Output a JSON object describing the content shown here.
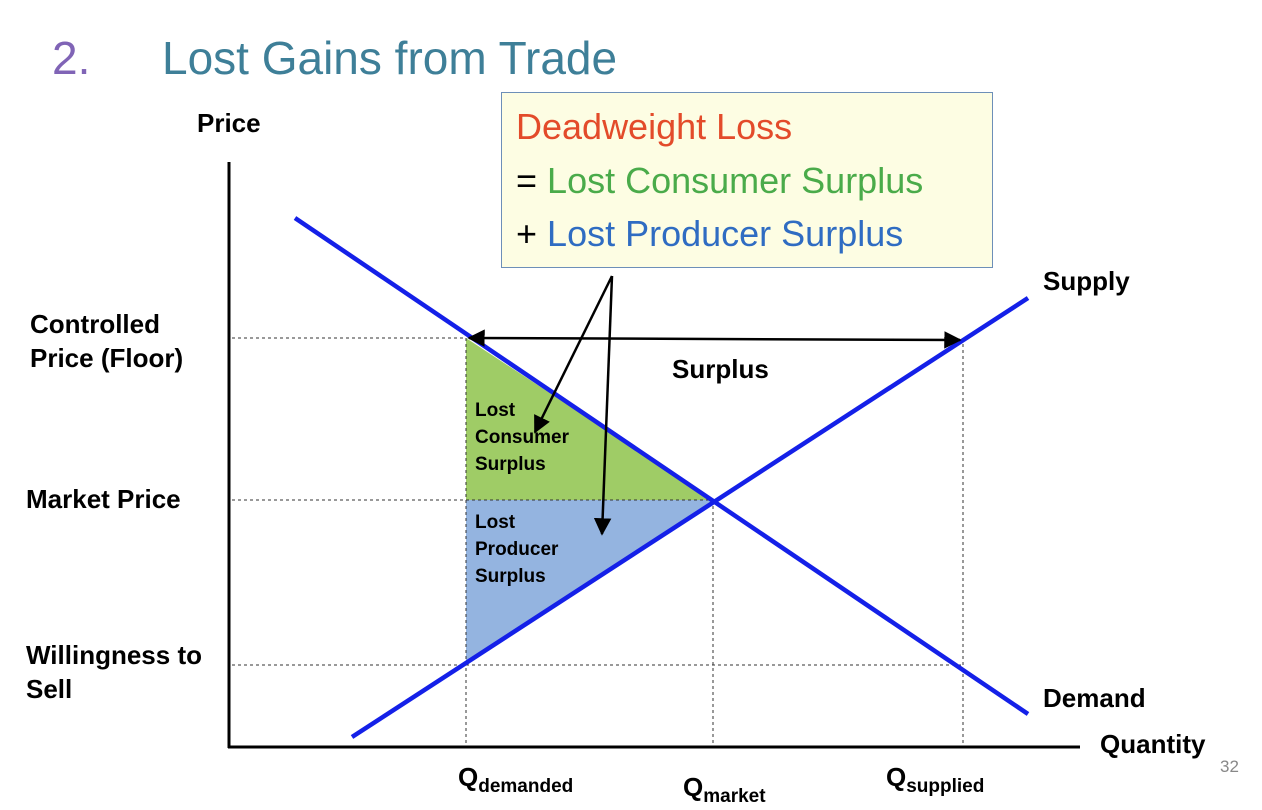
{
  "slide": {
    "number_label": "2.",
    "title": "Lost Gains from Trade",
    "page_number": "32"
  },
  "callout": {
    "line1": "Deadweight Loss",
    "line2_op": "=",
    "line2": "Lost Consumer Surplus",
    "line3_op": "+",
    "line3": "Lost Producer Surplus"
  },
  "axes": {
    "y_label": "Price",
    "x_label": "Quantity"
  },
  "price_labels": {
    "controlled_line1": "Controlled",
    "controlled_line2": "Price (Floor)",
    "market": "Market Price",
    "wts_line1": "Willingness to",
    "wts_line2": "Sell"
  },
  "quantity_labels": {
    "demanded_main": "Q",
    "demanded_sub": "demanded",
    "market_main": "Q",
    "market_sub": "market",
    "supplied_main": "Q",
    "supplied_sub": "supplied"
  },
  "curves": {
    "supply": "Supply",
    "demand": "Demand"
  },
  "regions": {
    "surplus": "Surplus",
    "lost_cs_1": "Lost",
    "lost_cs_2": "Consumer",
    "lost_cs_3": "Surplus",
    "lost_ps_1": "Lost",
    "lost_ps_2": "Producer",
    "lost_ps_3": "Surplus"
  },
  "colors": {
    "number": "#8064b6",
    "title": "#3e7f98",
    "deadweight": "#e34b2a",
    "consumer": "#4aab4a",
    "producer": "#2f6cc2",
    "curve": "#1420e8",
    "lost_cs_fill": "#9fcc66",
    "lost_ps_fill": "#94b4e0"
  }
}
